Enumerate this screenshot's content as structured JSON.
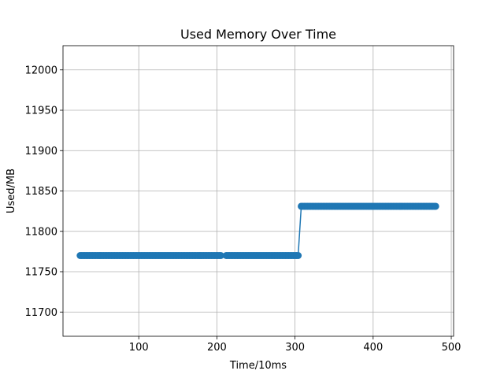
{
  "chart_data": {
    "type": "line",
    "title": "Used Memory Over Time",
    "xlabel": "Time/10ms",
    "ylabel": "Used/MB",
    "xlim": [
      3,
      503
    ],
    "ylim": [
      11670,
      12030
    ],
    "xticks": [
      100,
      200,
      300,
      400,
      500
    ],
    "yticks": [
      11700,
      11750,
      11800,
      11850,
      11900,
      11950,
      12000
    ],
    "grid": true,
    "color": "#1f77b4",
    "series": [
      {
        "segments": [
          {
            "x_start": 25,
            "x_end": 205,
            "x_step": 2,
            "y": 11770
          },
          {
            "x_start": 212,
            "x_end": 305,
            "x_step": 2,
            "y": 11770
          },
          {
            "x_start": 308,
            "x_end": 480,
            "x_step": 2,
            "y": 11831
          }
        ]
      }
    ]
  }
}
